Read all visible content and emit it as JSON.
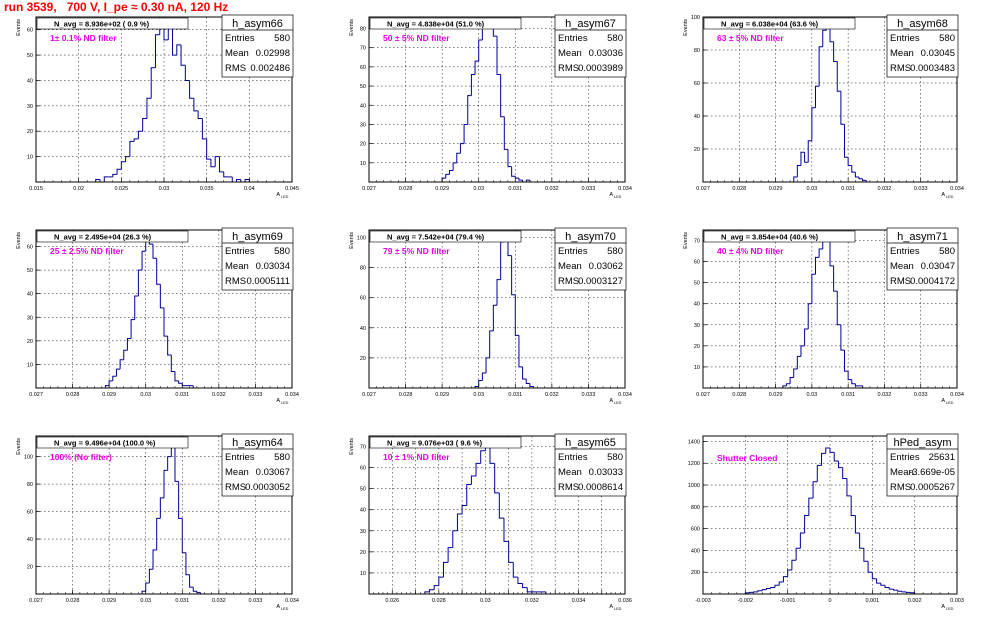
{
  "page_title": "run 3539,   700 V, I_pe ≈ 0.30 nA, 120 Hz",
  "stats_labels": {
    "entries": "Entries",
    "mean": "Mean",
    "rms": "RMS"
  },
  "colors": {
    "histogram": "#000099",
    "annotation": "#e600e6",
    "title": "#ff0000",
    "axis": "#000000"
  },
  "chart_data": [
    {
      "type": "bar",
      "name": "h_asym66",
      "navg": "N_avg = 8.936e+02 ( 0.9 %)",
      "note": "1± 0.1% ND filter",
      "entries": "580",
      "mean": "0.02998",
      "rms": "0.002486",
      "xlabel": "A",
      "xlabel_sub": "LED",
      "ylabel": "Events",
      "xlim": [
        0.015,
        0.045
      ],
      "ylim": [
        0,
        65
      ],
      "xticks": [
        0.015,
        0.02,
        0.025,
        0.03,
        0.035,
        0.04,
        0.045
      ],
      "xticklabels": [
        "0.015",
        "0.02",
        "0.025",
        "0.03",
        "0.035",
        "0.04",
        "0.045"
      ],
      "yticks": [
        10,
        20,
        30,
        40,
        50,
        60
      ],
      "yticklabels": [
        "10",
        "20",
        "30",
        "40",
        "50",
        "60"
      ],
      "bin_lo": 0.022,
      "bin_w": 0.0005,
      "values": [
        1,
        0,
        2,
        2,
        3,
        5,
        8,
        10,
        16,
        17,
        20,
        25,
        33,
        45,
        58,
        66,
        56,
        62,
        50,
        54,
        46,
        40,
        33,
        28,
        25,
        17,
        9,
        6,
        10,
        4,
        2,
        2,
        0,
        1,
        0,
        1
      ]
    },
    {
      "type": "bar",
      "name": "h_asym67",
      "navg": "N_avg = 4.838e+04 (51.0 %)",
      "note": "50 ± 5% ND filter",
      "entries": "580",
      "mean": "0.03036",
      "rms": "0.0003989",
      "xlabel": "A",
      "xlabel_sub": "LED",
      "ylabel": "Events",
      "xlim": [
        0.027,
        0.034
      ],
      "ylim": [
        0,
        86
      ],
      "xticks": [
        0.027,
        0.028,
        0.029,
        0.03,
        0.031,
        0.032,
        0.033,
        0.034
      ],
      "xticklabels": [
        "0.027",
        "0.028",
        "0.029",
        "0.03",
        "0.031",
        "0.032",
        "0.033",
        "0.034"
      ],
      "yticks": [
        10,
        20,
        30,
        40,
        50,
        60,
        70,
        80
      ],
      "yticklabels": [
        "10",
        "20",
        "30",
        "40",
        "50",
        "60",
        "70",
        "80"
      ],
      "bin_lo": 0.029,
      "bin_w": 0.0001,
      "values": [
        2,
        4,
        6,
        10,
        15,
        20,
        30,
        45,
        56,
        63,
        74,
        80,
        84,
        82,
        76,
        56,
        34,
        17,
        8,
        3,
        2,
        1,
        0,
        1
      ]
    },
    {
      "type": "bar",
      "name": "h_asym68",
      "navg": "N_avg = 6.038e+04 (63.6 %)",
      "note": "63 ± 5% ND filter",
      "entries": "580",
      "mean": "0.03045",
      "rms": "0.0003483",
      "xlabel": "A",
      "xlabel_sub": "LED",
      "ylabel": "Events",
      "xlim": [
        0.027,
        0.034
      ],
      "ylim": [
        0,
        100
      ],
      "xticks": [
        0.027,
        0.028,
        0.029,
        0.03,
        0.031,
        0.032,
        0.033,
        0.034
      ],
      "xticklabels": [
        "0.027",
        "0.028",
        "0.029",
        "0.03",
        "0.031",
        "0.032",
        "0.033",
        "0.034"
      ],
      "yticks": [
        20,
        40,
        60,
        80,
        100
      ],
      "yticklabels": [
        "20",
        "40",
        "60",
        "80",
        "100"
      ],
      "bin_lo": 0.0295,
      "bin_w": 0.0001,
      "values": [
        3,
        10,
        18,
        12,
        25,
        45,
        58,
        82,
        92,
        96,
        85,
        73,
        55,
        35,
        15,
        10,
        6,
        3,
        2,
        1
      ]
    },
    {
      "type": "bar",
      "name": "h_asym69",
      "navg": "N_avg = 2.495e+04 (26.3 %)",
      "note": "25 ± 2.5% ND filter",
      "entries": "580",
      "mean": "0.03034",
      "rms": "0.0005111",
      "xlabel": "A",
      "xlabel_sub": "LED",
      "ylabel": "Events",
      "xlim": [
        0.027,
        0.034
      ],
      "ylim": [
        0,
        67
      ],
      "xticks": [
        0.027,
        0.028,
        0.029,
        0.03,
        0.031,
        0.032,
        0.033,
        0.034
      ],
      "xticklabels": [
        "0.027",
        "0.028",
        "0.029",
        "0.03",
        "0.031",
        "0.032",
        "0.033",
        "0.034"
      ],
      "yticks": [
        10,
        20,
        30,
        40,
        50,
        60
      ],
      "yticklabels": [
        "10",
        "20",
        "30",
        "40",
        "50",
        "60"
      ],
      "bin_lo": 0.0289,
      "bin_w": 0.0001,
      "values": [
        1,
        3,
        5,
        8,
        12,
        16,
        21,
        29,
        39,
        50,
        58,
        63,
        61,
        55,
        44,
        34,
        22,
        14,
        7,
        3,
        2,
        1,
        1,
        1
      ]
    },
    {
      "type": "bar",
      "name": "h_asym70",
      "navg": "N_avg = 7.542e+04 (79.4 %)",
      "note": "79 ± 5% ND filter",
      "entries": "580",
      "mean": "0.03062",
      "rms": "0.0003127",
      "xlabel": "A",
      "xlabel_sub": "LED",
      "ylabel": "Events",
      "xlim": [
        0.027,
        0.034
      ],
      "ylim": [
        0,
        105
      ],
      "xticks": [
        0.027,
        0.028,
        0.029,
        0.03,
        0.031,
        0.032,
        0.033,
        0.034
      ],
      "xticklabels": [
        "0.027",
        "0.028",
        "0.029",
        "0.03",
        "0.031",
        "0.032",
        "0.033",
        "0.034"
      ],
      "yticks": [
        20,
        40,
        60,
        80,
        100
      ],
      "yticklabels": [
        "20",
        "40",
        "60",
        "80",
        "100"
      ],
      "bin_lo": 0.0299,
      "bin_w": 0.0001,
      "values": [
        1,
        5,
        10,
        20,
        38,
        55,
        72,
        97,
        104,
        88,
        62,
        35,
        14,
        6,
        3,
        1
      ]
    },
    {
      "type": "bar",
      "name": "h_asym71",
      "navg": "N_avg = 3.854e+04 (40.6 %)",
      "note": "40 ± 4% ND filter",
      "entries": "580",
      "mean": "0.03047",
      "rms": "0.0004172",
      "xlabel": "A",
      "xlabel_sub": "LED",
      "ylabel": "Events",
      "xlim": [
        0.027,
        0.034
      ],
      "ylim": [
        0,
        75
      ],
      "xticks": [
        0.027,
        0.028,
        0.029,
        0.03,
        0.031,
        0.032,
        0.033,
        0.034
      ],
      "xticklabels": [
        "0.027",
        "0.028",
        "0.029",
        "0.03",
        "0.031",
        "0.032",
        "0.033",
        "0.034"
      ],
      "yticks": [
        10,
        20,
        30,
        40,
        50,
        60,
        70
      ],
      "yticklabels": [
        "10",
        "20",
        "30",
        "40",
        "50",
        "60",
        "70"
      ],
      "bin_lo": 0.0292,
      "bin_w": 0.0001,
      "values": [
        1,
        2,
        5,
        9,
        15,
        20,
        28,
        40,
        54,
        62,
        66,
        70,
        72,
        58,
        46,
        30,
        18,
        8,
        4,
        2,
        1,
        1
      ]
    },
    {
      "type": "bar",
      "name": "h_asym64",
      "navg": "N_avg = 9.496e+04 (100.0 %)",
      "note": "100% (No filter)",
      "entries": "580",
      "mean": "0.03067",
      "rms": "0.0003052",
      "xlabel": "A",
      "xlabel_sub": "LED",
      "ylabel": "Events",
      "xlim": [
        0.027,
        0.034
      ],
      "ylim": [
        0,
        115
      ],
      "xticks": [
        0.027,
        0.028,
        0.029,
        0.03,
        0.031,
        0.032,
        0.033,
        0.034
      ],
      "xticklabels": [
        "0.027",
        "0.028",
        "0.029",
        "0.03",
        "0.031",
        "0.032",
        "0.033",
        "0.034"
      ],
      "yticks": [
        20,
        40,
        60,
        80,
        100
      ],
      "yticklabels": [
        "20",
        "40",
        "60",
        "80",
        "100"
      ],
      "bin_lo": 0.0299,
      "bin_w": 0.0001,
      "values": [
        2,
        8,
        18,
        32,
        55,
        70,
        90,
        100,
        110,
        82,
        55,
        30,
        14,
        5,
        2,
        1
      ]
    },
    {
      "type": "bar",
      "name": "h_asym65",
      "navg": "N_avg = 9.076e+03 ( 9.6 %)",
      "note": "10 ± 1% ND filter",
      "entries": "580",
      "mean": "0.03033",
      "rms": "0.0008614",
      "xlabel": "A",
      "xlabel_sub": "LED",
      "ylabel": "Events",
      "xlim": [
        0.025,
        0.036
      ],
      "ylim": [
        0,
        75
      ],
      "xticks": [
        0.025,
        0.026,
        0.027,
        0.028,
        0.029,
        0.03,
        0.031,
        0.032,
        0.033,
        0.034,
        0.035,
        0.036
      ],
      "xticklabels": [
        "",
        "0.026",
        "",
        "0.028",
        "",
        "0.03",
        "",
        "0.032",
        "",
        "0.034",
        "",
        "0.036"
      ],
      "yticks": [
        10,
        20,
        30,
        40,
        50,
        60,
        70
      ],
      "yticklabels": [
        "10",
        "20",
        "30",
        "40",
        "50",
        "60",
        "70"
      ],
      "bin_lo": 0.0274,
      "bin_w": 0.0002,
      "values": [
        1,
        2,
        4,
        8,
        15,
        22,
        30,
        38,
        42,
        52,
        56,
        62,
        68,
        72,
        62,
        48,
        36,
        25,
        15,
        8,
        5,
        3,
        1,
        1,
        1,
        1
      ]
    },
    {
      "type": "bar",
      "name": "hPed_asym",
      "navg": "",
      "note": "Shutter Closed",
      "entries": "25631",
      "mean": "-3.669e-05",
      "rms": "0.0005267",
      "xlabel": "A",
      "xlabel_sub": "LED",
      "ylabel": "",
      "xlim": [
        -0.003,
        0.003
      ],
      "ylim": [
        0,
        1450
      ],
      "xticks": [
        -0.003,
        -0.002,
        -0.001,
        0,
        0.001,
        0.002,
        0.003
      ],
      "xticklabels": [
        "-0.003",
        "-0.002",
        "-0.001",
        "0",
        "0.001",
        "0.002",
        "0.003"
      ],
      "yticks": [
        200,
        400,
        600,
        800,
        1000,
        1200,
        1400
      ],
      "yticklabels": [
        "200",
        "400",
        "600",
        "800",
        "1000",
        "1200",
        "1400"
      ],
      "bin_lo": -0.002,
      "bin_w": 0.0001,
      "values": [
        10,
        15,
        20,
        30,
        40,
        50,
        60,
        80,
        110,
        160,
        220,
        310,
        420,
        560,
        720,
        880,
        1030,
        1180,
        1290,
        1340,
        1300,
        1220,
        1160,
        1060,
        900,
        720,
        560,
        420,
        300,
        200,
        140,
        100,
        80,
        60,
        45,
        35,
        25,
        20,
        15,
        12
      ]
    }
  ]
}
